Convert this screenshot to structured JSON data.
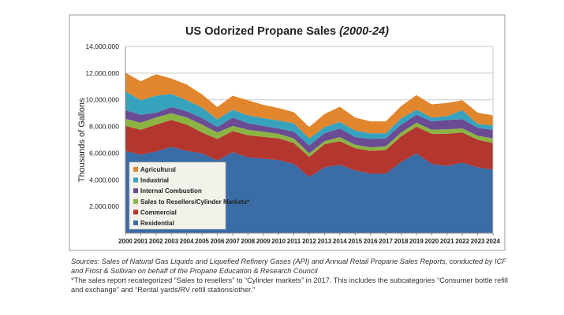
{
  "chart_data": {
    "type": "area",
    "stacked": true,
    "title": "US Odorized Propane Sales",
    "title_suffix": "(2000-24)",
    "ylabel": "Thousands of Gallons",
    "xlabel": "",
    "ylim": [
      0,
      14000000
    ],
    "yticks": [
      2000000,
      4000000,
      6000000,
      8000000,
      10000000,
      12000000,
      14000000
    ],
    "ytick_labels": [
      "2,000,000",
      "4,000,000",
      "6,000,000",
      "8,000,000",
      "10,000,000",
      "12,000,000",
      "14,000,000"
    ],
    "grid": "horizontal",
    "legend_position": "bottom-left",
    "x": [
      "2000",
      "2001",
      "2002",
      "2003",
      "2004",
      "2005",
      "2006",
      "2007",
      "2008",
      "2009",
      "2010",
      "2011",
      "2012",
      "2013",
      "2014",
      "2015",
      "2016",
      "2017",
      "2018",
      "2019",
      "2020",
      "2021",
      "2022",
      "2023",
      "2024"
    ],
    "series": [
      {
        "name": "Residential",
        "color": "#3a6ca6",
        "values": [
          6170000,
          5880000,
          6120000,
          6470000,
          6170000,
          5980000,
          5450000,
          6070000,
          5680000,
          5580000,
          5480000,
          5190000,
          4210000,
          4930000,
          5130000,
          4700000,
          4460000,
          4460000,
          5330000,
          5980000,
          5190000,
          5030000,
          5290000,
          4930000,
          4760000
        ]
      },
      {
        "name": "Commercial",
        "color": "#b3362f",
        "values": [
          1870000,
          1870000,
          2020000,
          2010000,
          1970000,
          1570000,
          1610000,
          1580000,
          1670000,
          1640000,
          1620000,
          1570000,
          1510000,
          1740000,
          1770000,
          1670000,
          1710000,
          1770000,
          1930000,
          2000000,
          2260000,
          2420000,
          2260000,
          2070000,
          2000000
        ]
      },
      {
        "name": "Sales to Resellers/Cylinder Markets*",
        "color": "#8cb443",
        "values": [
          530000,
          530000,
          540000,
          510000,
          540000,
          590000,
          490000,
          390000,
          400000,
          390000,
          350000,
          340000,
          260000,
          230000,
          300000,
          260000,
          260000,
          280000,
          290000,
          300000,
          300000,
          340000,
          300000,
          300000,
          340000
        ]
      },
      {
        "name": "Internal Combustion",
        "color": "#6a4b94",
        "values": [
          650000,
          590000,
          350000,
          470000,
          450000,
          490000,
          400000,
          630000,
          490000,
          430000,
          400000,
          510000,
          590000,
          590000,
          650000,
          570000,
          630000,
          590000,
          590000,
          590000,
          630000,
          690000,
          690000,
          590000,
          650000
        ]
      },
      {
        "name": "Industrial",
        "color": "#37a2be",
        "values": [
          1420000,
          1100000,
          1280000,
          980000,
          840000,
          790000,
          590000,
          590000,
          590000,
          590000,
          590000,
          630000,
          530000,
          460000,
          490000,
          490000,
          430000,
          390000,
          460000,
          390000,
          290000,
          290000,
          680000,
          290000,
          330000
        ]
      },
      {
        "name": "Agricultural",
        "color": "#e2862e",
        "values": [
          1400000,
          1420000,
          1610000,
          1150000,
          1180000,
          990000,
          920000,
          1040000,
          1140000,
          990000,
          940000,
          830000,
          850000,
          980000,
          1140000,
          980000,
          890000,
          890000,
          920000,
          1090000,
          990000,
          990000,
          750000,
          850000,
          750000
        ]
      }
    ]
  },
  "caption": {
    "sources": "Sources: Sales of Natural Gas Liquids and Liquefied Refinery Gases (API) and Annual Retail Propane Sales Reports, conducted by ICF and Frost & Sullivan on behalf of the Propane Education & Research Council",
    "footnote": "*The sales report recategorized “Sales to resellers” to “Cylinder markets” in 2017. This includes the subcategories “Consumer bottle refill and exchange” and “Rental yards/RV refill stations/other.”"
  }
}
